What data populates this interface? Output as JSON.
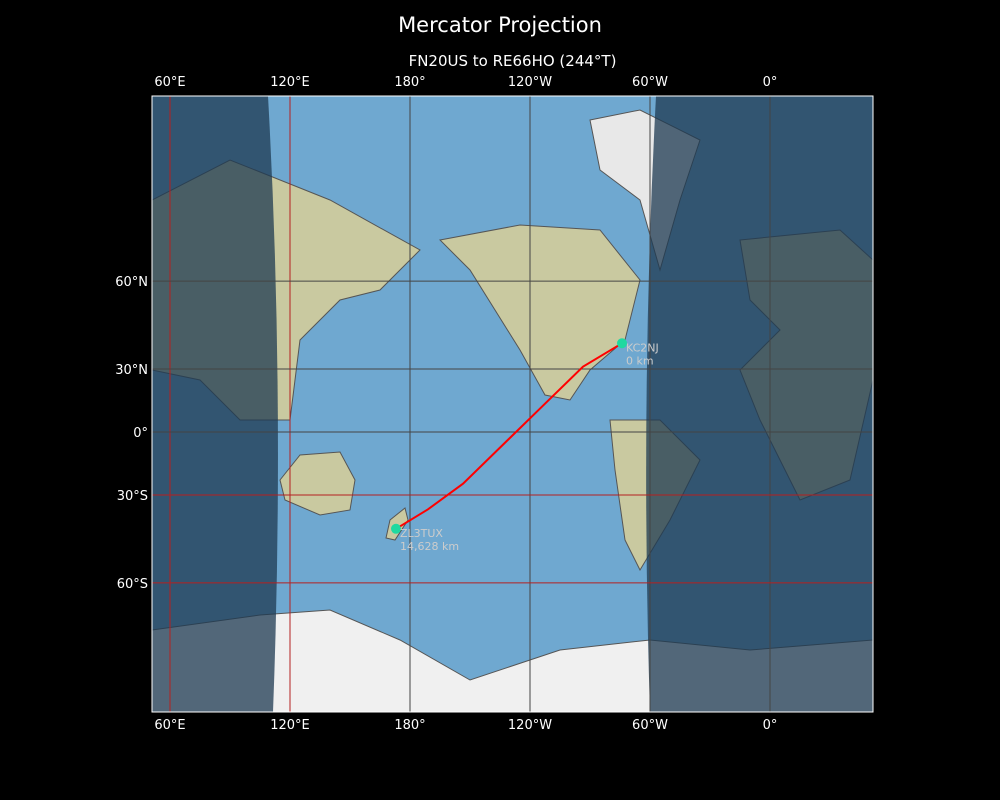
{
  "title": "Mercator Projection",
  "subtitle": "FN20US to RE66HO (244°T)",
  "lon_ticks": [
    {
      "label": "60°E",
      "lon": 60
    },
    {
      "label": "120°E",
      "lon": 120
    },
    {
      "label": "180°",
      "lon": 180
    },
    {
      "label": "120°W",
      "lon": 240
    },
    {
      "label": "60°W",
      "lon": 300
    },
    {
      "label": "0°",
      "lon": 360
    }
  ],
  "lat_ticks": [
    {
      "label": "60°N",
      "lat": 60
    },
    {
      "label": "30°N",
      "lat": 30
    },
    {
      "label": "0°",
      "lat": 0
    },
    {
      "label": "30°S",
      "lat": -30
    },
    {
      "label": "60°S",
      "lat": -60
    }
  ],
  "stations": [
    {
      "call": "KC2NJ",
      "distance": "0 km",
      "lat": 40.5,
      "lon": 286
    },
    {
      "call": "ZL3TUX",
      "distance": "14,628 km",
      "lat": -43.5,
      "lon": 173
    }
  ],
  "route": [
    [
      40.5,
      286
    ],
    [
      31,
      266.5
    ],
    [
      14,
      247.5
    ],
    [
      -25,
      206.5
    ],
    [
      -36,
      189
    ],
    [
      -43.5,
      173
    ]
  ],
  "colors": {
    "route": "#ff0000",
    "station": "#1fd9a0",
    "ocean": "#6fa8d0",
    "night": "#1e3a52",
    "grid_red": "#b52020",
    "grid_gray": "#444444"
  }
}
